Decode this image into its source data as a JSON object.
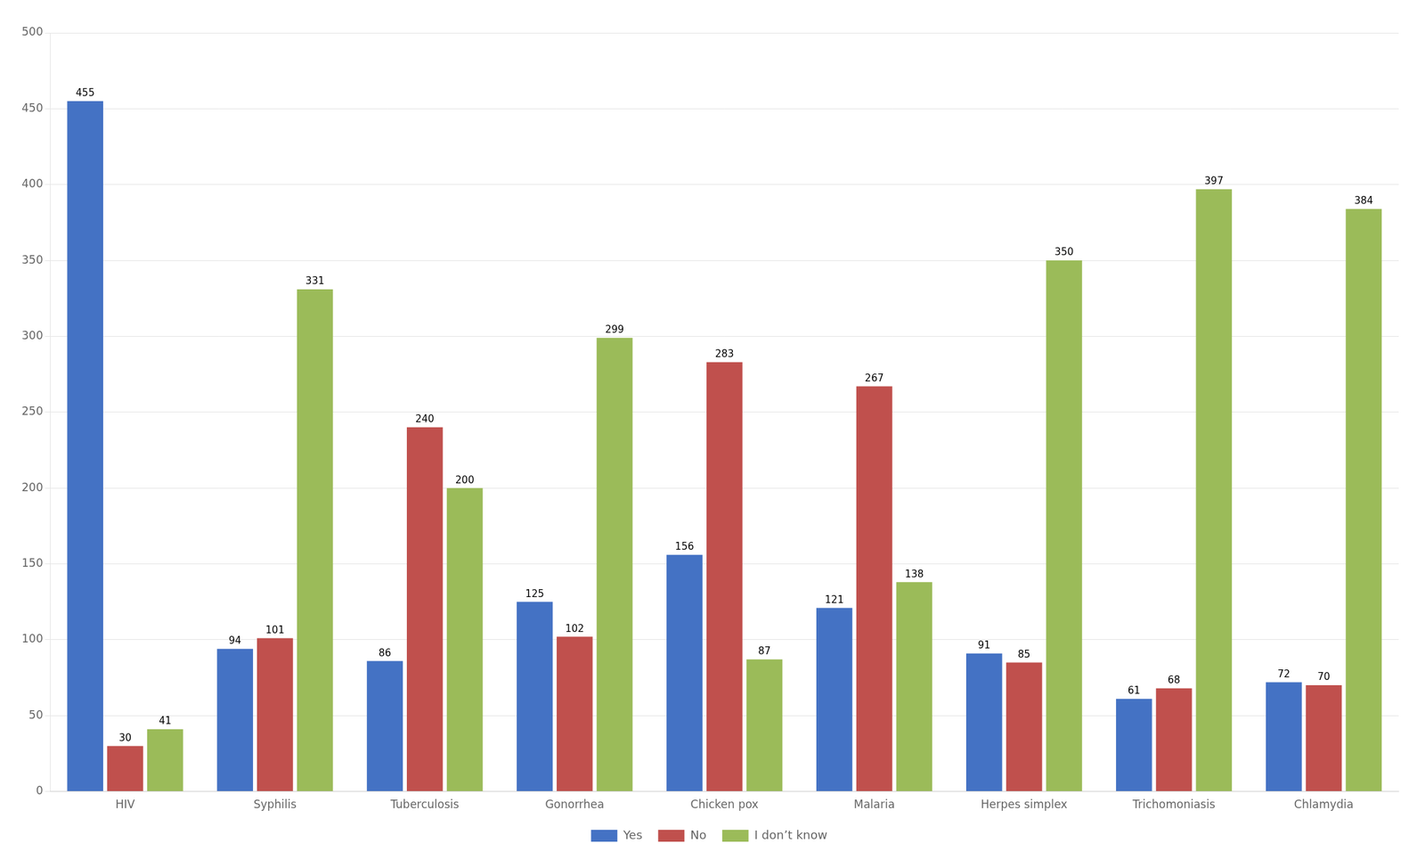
{
  "chart_data": {
    "type": "bar",
    "categories": [
      "HIV",
      "Syphilis",
      "Tuberculosis",
      "Gonorrhea",
      "Chicken pox",
      "Malaria",
      "Herpes simplex",
      "Trichomoniasis",
      "Chlamydia"
    ],
    "series": [
      {
        "name": "Yes",
        "color": "#4472C4",
        "values": [
          455,
          94,
          86,
          125,
          156,
          121,
          91,
          61,
          72
        ]
      },
      {
        "name": "No",
        "color": "#C0504D",
        "values": [
          30,
          101,
          240,
          102,
          283,
          267,
          85,
          68,
          70
        ]
      },
      {
        "name": "I don’t know",
        "color": "#9BBB59",
        "values": [
          41,
          331,
          200,
          299,
          87,
          138,
          350,
          397,
          384
        ]
      }
    ],
    "ylim": [
      0,
      500
    ],
    "yticks": [
      0,
      50,
      100,
      150,
      200,
      250,
      300,
      350,
      400,
      450,
      500
    ],
    "grid": true,
    "legend": "bottom",
    "data_labels": true
  }
}
